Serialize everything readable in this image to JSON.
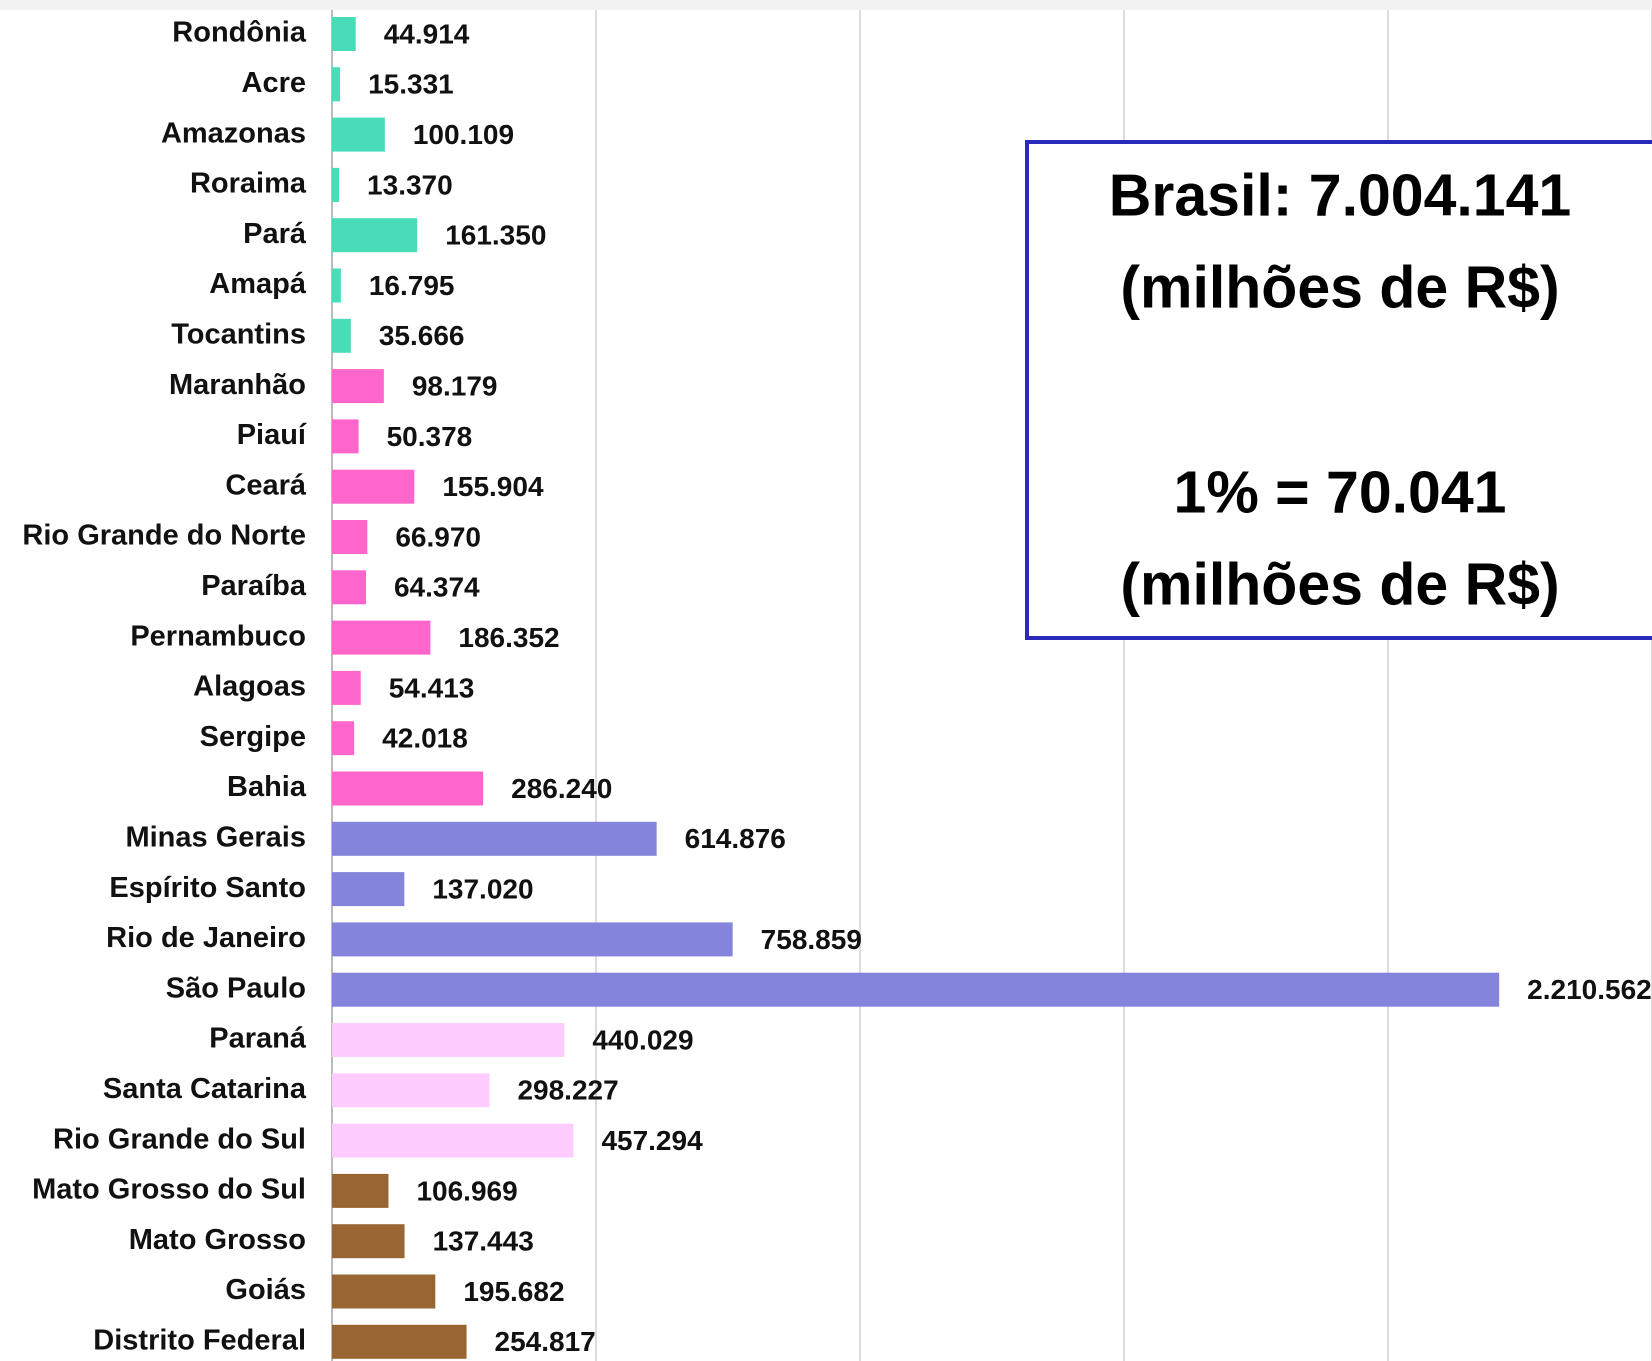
{
  "chart_data": {
    "type": "barh",
    "categories": [
      "Rondônia",
      "Acre",
      "Amazonas",
      "Roraima",
      "Pará",
      "Amapá",
      "Tocantins",
      "Maranhão",
      "Piauí",
      "Ceará",
      "Rio Grande do Norte",
      "Paraíba",
      "Pernambuco",
      "Alagoas",
      "Sergipe",
      "Bahia",
      "Minas Gerais",
      "Espírito Santo",
      "Rio de Janeiro",
      "São Paulo",
      "Paraná",
      "Santa Catarina",
      "Rio Grande do Sul",
      "Mato Grosso do Sul",
      "Mato Grosso",
      "Goiás",
      "Distrito Federal"
    ],
    "values": [
      44914,
      15331,
      100109,
      13370,
      161350,
      16795,
      35666,
      98179,
      50378,
      155904,
      66970,
      64374,
      186352,
      54413,
      42018,
      286240,
      614876,
      137020,
      758859,
      2210562,
      440029,
      298227,
      457294,
      106969,
      137443,
      195682,
      254817
    ],
    "value_labels": [
      "44.914",
      "15.331",
      "100.109",
      "13.370",
      "161.350",
      "16.795",
      "35.666",
      "98.179",
      "50.378",
      "155.904",
      "66.970",
      "64.374",
      "186.352",
      "54.413",
      "42.018",
      "286.240",
      "614.876",
      "137.020",
      "758.859",
      "2.210.562",
      "440.029",
      "298.227",
      "457.294",
      "106.969",
      "137.443",
      "195.682",
      "254.817"
    ],
    "colors": [
      "#48ddb8",
      "#48ddb8",
      "#48ddb8",
      "#48ddb8",
      "#48ddb8",
      "#48ddb8",
      "#48ddb8",
      "#ff66cc",
      "#ff66cc",
      "#ff66cc",
      "#ff66cc",
      "#ff66cc",
      "#ff66cc",
      "#ff66cc",
      "#ff66cc",
      "#ff66cc",
      "#8484dd",
      "#8484dd",
      "#8484dd",
      "#8484dd",
      "#ffccff",
      "#ffccff",
      "#ffccff",
      "#996633",
      "#996633",
      "#996633",
      "#996633"
    ],
    "xlim": [
      0,
      2500000
    ],
    "xticks": [
      0,
      500000,
      1000000,
      1500000,
      2000000,
      2500000
    ],
    "grid": true,
    "annotations": [
      "Brasil: 7.004.141",
      "(milhões de R$)",
      "1% = 70.041",
      "(milhões de R$)"
    ]
  }
}
